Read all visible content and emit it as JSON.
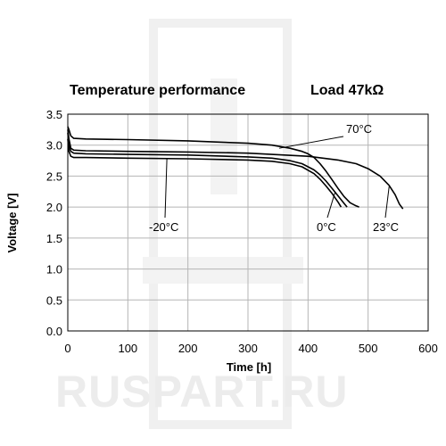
{
  "watermark": {
    "text": "RUSPART.RU"
  },
  "chart_data": {
    "type": "line",
    "title": "Temperature performance",
    "subtitle": "Load 47kΩ",
    "xlabel": "Time [h]",
    "ylabel": "Voltage [V]",
    "xlim": [
      0,
      600
    ],
    "ylim": [
      0,
      3.5
    ],
    "xticks": [
      0,
      100,
      200,
      300,
      400,
      500,
      600
    ],
    "yticks": [
      "0.0",
      "0.5",
      "1.0",
      "1.5",
      "2.0",
      "2.5",
      "3.0",
      "3.5"
    ],
    "grid": true,
    "series": [
      {
        "name": "70°C",
        "x": [
          0,
          2,
          5,
          10,
          30,
          100,
          200,
          300,
          340,
          370,
          390,
          400,
          410,
          420,
          430,
          440,
          450,
          460,
          470,
          480,
          485
        ],
        "y": [
          3.3,
          3.25,
          3.15,
          3.11,
          3.1,
          3.09,
          3.07,
          3.03,
          3.0,
          2.95,
          2.9,
          2.86,
          2.8,
          2.7,
          2.58,
          2.44,
          2.3,
          2.17,
          2.07,
          2.02,
          2.0
        ]
      },
      {
        "name": "23°C",
        "x": [
          0,
          2,
          5,
          10,
          30,
          100,
          200,
          300,
          400,
          450,
          480,
          500,
          520,
          535,
          545,
          552,
          558
        ],
        "y": [
          3.25,
          3.1,
          2.95,
          2.92,
          2.91,
          2.9,
          2.89,
          2.87,
          2.82,
          2.76,
          2.7,
          2.62,
          2.5,
          2.35,
          2.2,
          2.05,
          1.97
        ]
      },
      {
        "name": "0°C",
        "x": [
          0,
          2,
          5,
          10,
          30,
          100,
          200,
          300,
          340,
          370,
          390,
          410,
          420,
          430,
          440,
          450,
          460,
          465
        ],
        "y": [
          3.2,
          3.0,
          2.9,
          2.87,
          2.86,
          2.85,
          2.84,
          2.81,
          2.79,
          2.75,
          2.7,
          2.6,
          2.52,
          2.42,
          2.3,
          2.18,
          2.06,
          2.0
        ]
      },
      {
        "name": "-20°C",
        "x": [
          0,
          2,
          5,
          10,
          30,
          100,
          200,
          300,
          340,
          370,
          390,
          410,
          420,
          430,
          440,
          450,
          455
        ],
        "y": [
          3.1,
          2.9,
          2.82,
          2.8,
          2.8,
          2.79,
          2.78,
          2.76,
          2.74,
          2.7,
          2.65,
          2.54,
          2.45,
          2.34,
          2.22,
          2.08,
          2.0
        ]
      }
    ],
    "annotations": [
      {
        "text": "70°C",
        "series": "70°C",
        "at": [
          352,
          2.95
        ]
      },
      {
        "text": "23°C",
        "series": "23°C",
        "at": [
          535,
          2.33
        ]
      },
      {
        "text": "0°C",
        "series": "0°C",
        "at": [
          445,
          2.24
        ]
      },
      {
        "text": "-20°C",
        "series": "-20°C",
        "at": [
          165,
          2.78
        ]
      }
    ]
  }
}
